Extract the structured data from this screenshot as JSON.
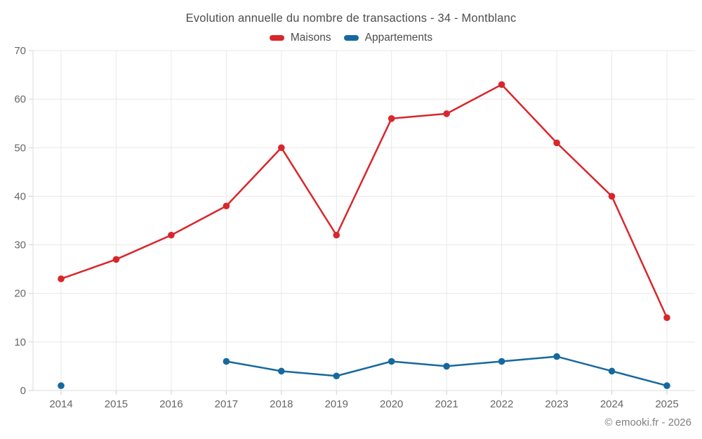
{
  "title": "Evolution annuelle du nombre de transactions - 34 - Montblanc",
  "footer": "© emooki.fr - 2026",
  "colors": {
    "maisons": "#d9262b",
    "appartements": "#16699e",
    "gridline": "#e8e8e8",
    "axis": "#dcdcdc",
    "tick": "#cfcfcf",
    "tick_label": "#666666",
    "title_text": "#4d4d4d",
    "footer_text": "#808080"
  },
  "chart_data": {
    "type": "line",
    "title": "Evolution annuelle du nombre de transactions - 34 - Montblanc",
    "categories": [
      "2014",
      "2015",
      "2016",
      "2017",
      "2018",
      "2019",
      "2020",
      "2021",
      "2022",
      "2023",
      "2024",
      "2025"
    ],
    "series": [
      {
        "name": "Maisons",
        "color": "#d9262b",
        "values": [
          23,
          27,
          32,
          38,
          50,
          32,
          56,
          57,
          63,
          51,
          40,
          15
        ]
      },
      {
        "name": "Appartements",
        "color": "#16699e",
        "values": [
          1,
          null,
          null,
          6,
          4,
          3,
          6,
          5,
          6,
          7,
          4,
          1
        ]
      }
    ],
    "xlabel": "",
    "ylabel": "",
    "ylim": [
      0,
      70
    ],
    "ytick_step": 10,
    "grid": true,
    "legend_position": "top"
  }
}
